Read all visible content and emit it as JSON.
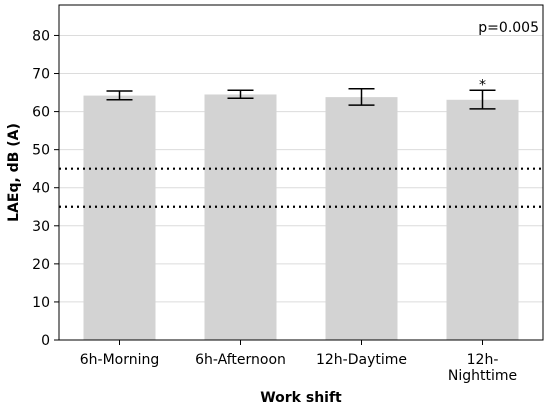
{
  "chart_data": {
    "type": "bar",
    "xlabel": "Work shift",
    "ylabel": "LAEq, dB (A)",
    "ylim": [
      0,
      88
    ],
    "yticks": [
      0,
      10,
      20,
      30,
      40,
      50,
      60,
      70,
      80
    ],
    "grid": true,
    "categories": [
      [
        "6h-Morning"
      ],
      [
        "6h-Afternoon"
      ],
      [
        "12h-Daytime"
      ],
      [
        "12h-",
        "Nighttime"
      ]
    ],
    "values": [
      64.2,
      64.5,
      63.8,
      63.1
    ],
    "error_high": [
      65.4,
      65.6,
      66.0,
      65.6
    ],
    "error_low": [
      63.1,
      63.5,
      61.7,
      60.7
    ],
    "significance_markers": [
      "",
      "",
      "",
      "*"
    ],
    "reference_lines": [
      45,
      35
    ],
    "annotation": "p=0.005",
    "colors": {
      "bar": "#d3d3d3",
      "grid": "#dcdcdc",
      "axis": "#000000"
    }
  }
}
